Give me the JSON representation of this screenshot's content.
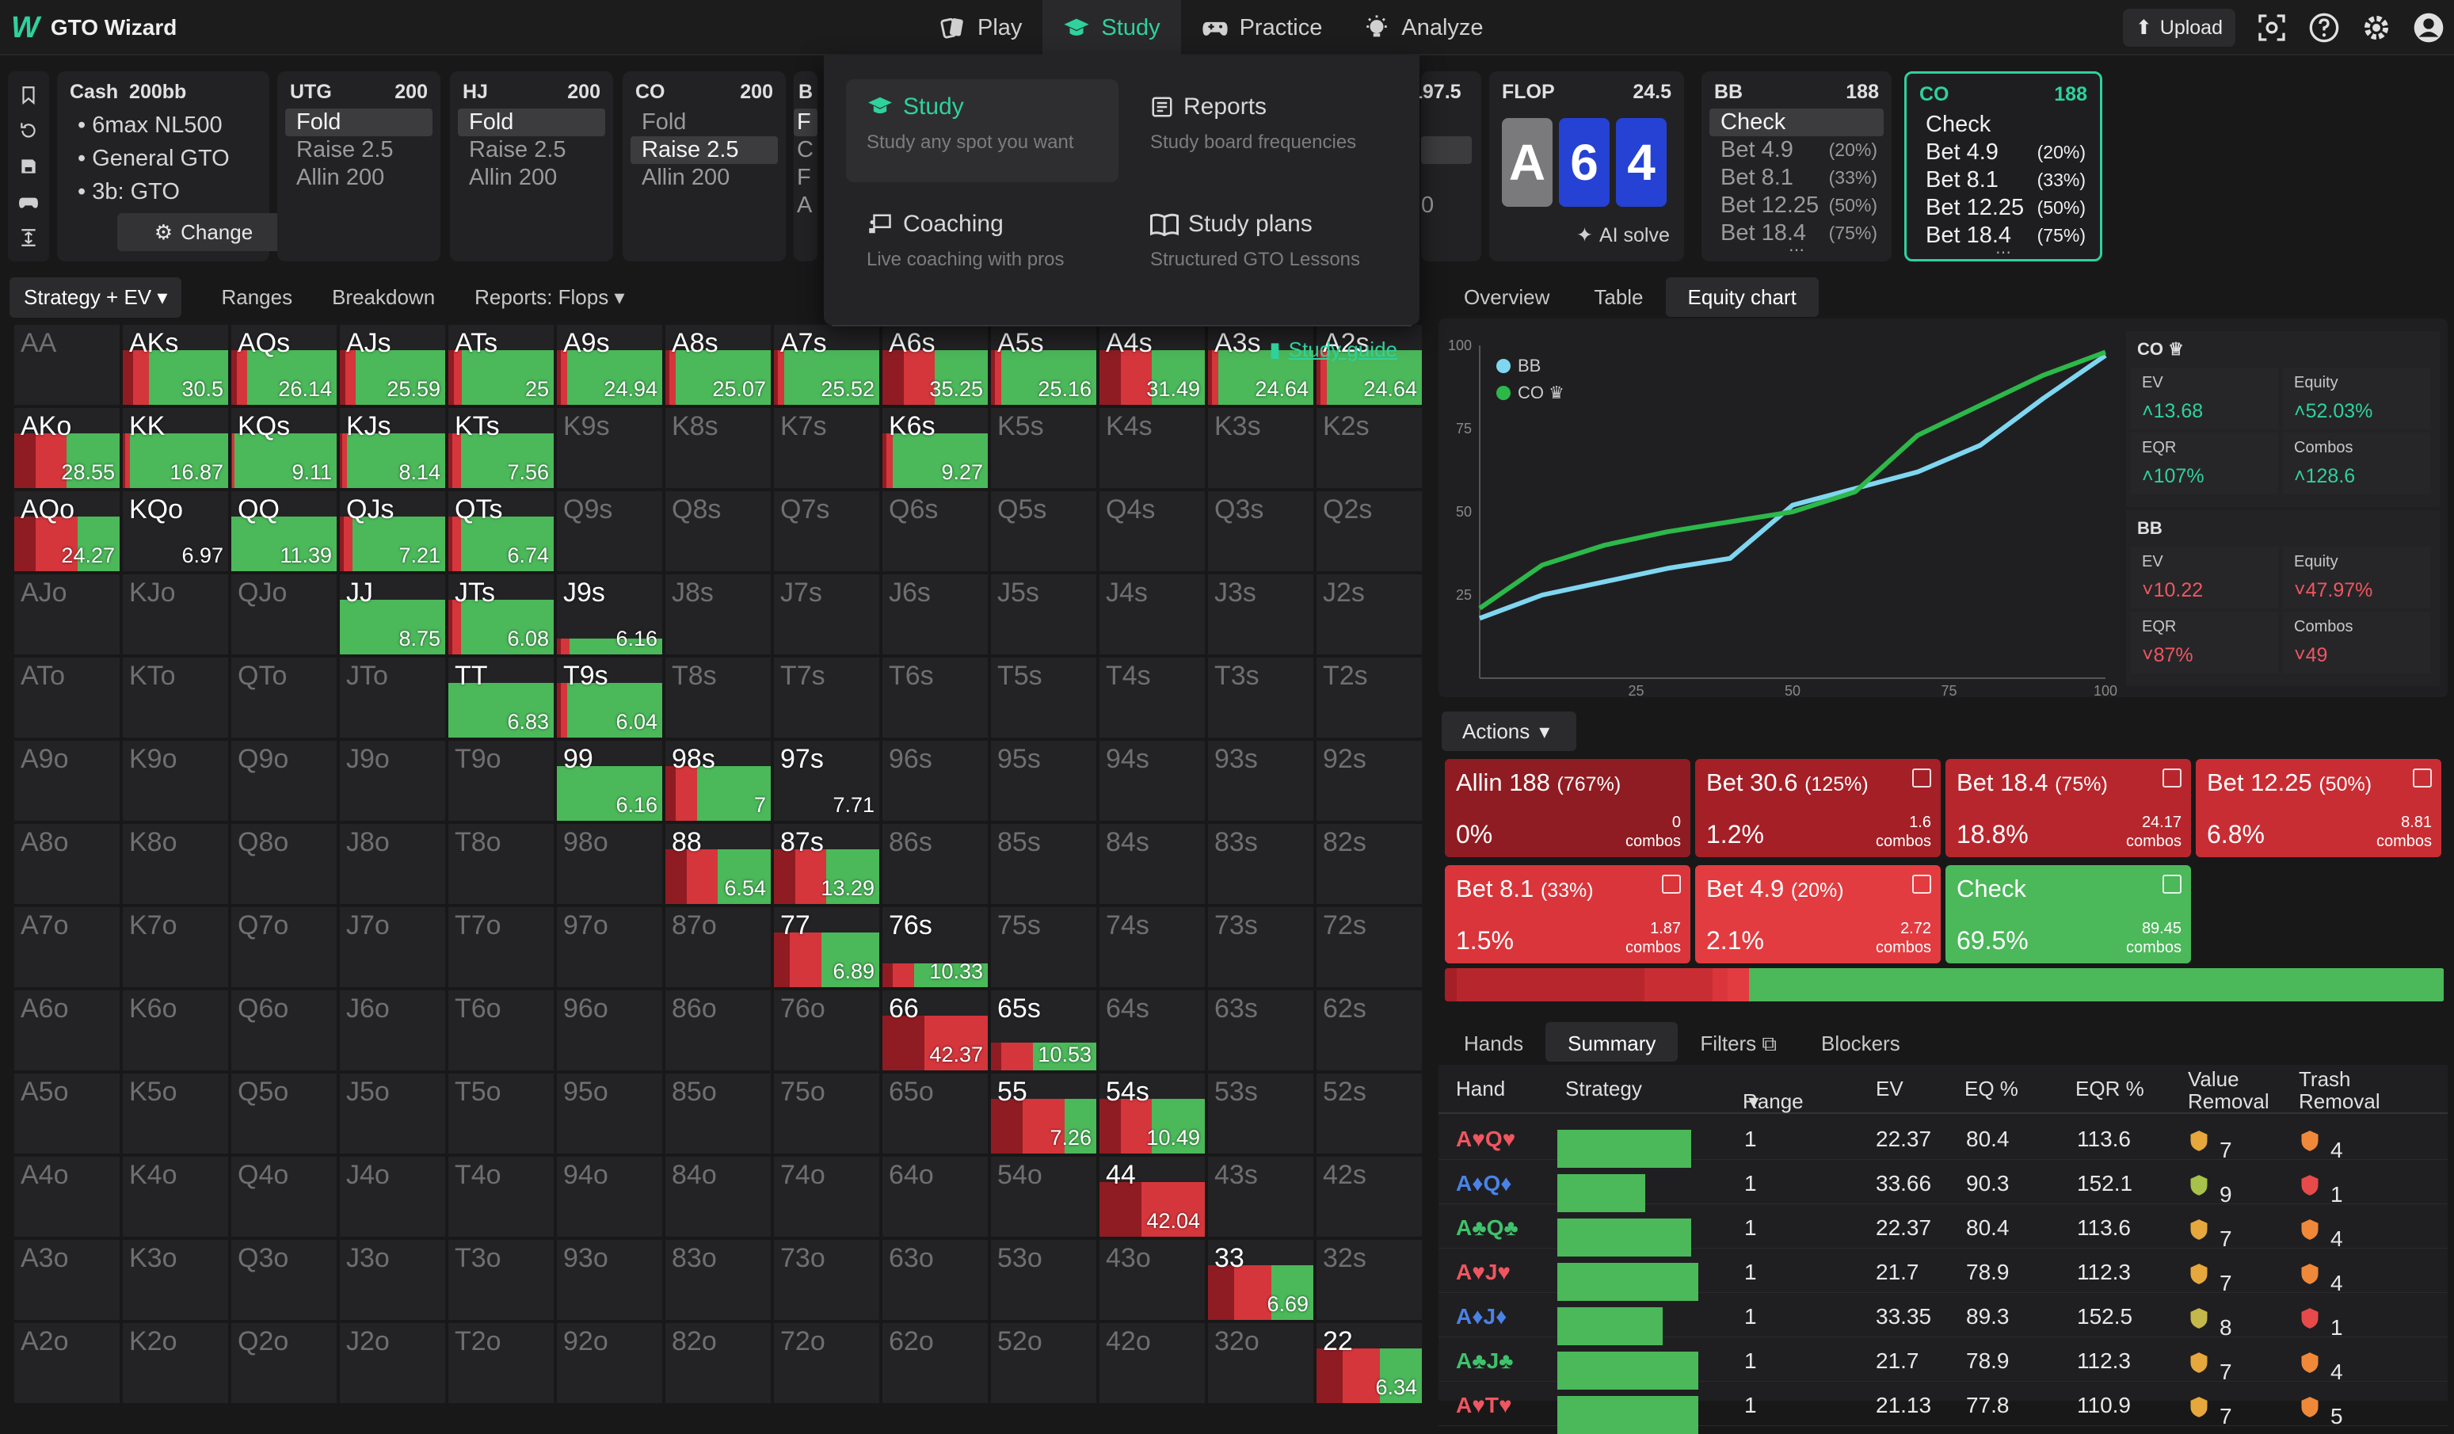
{
  "app": {
    "title": "GTO Wizard"
  },
  "nav": {
    "tabs": [
      {
        "label": "Play"
      },
      {
        "label": "Study"
      },
      {
        "label": "Practice"
      },
      {
        "label": "Analyze"
      }
    ]
  },
  "topright": {
    "upload": "Upload"
  },
  "spot": {
    "game": "Cash",
    "stack": "200bb",
    "details": [
      "• 6max NL500",
      "• General GTO",
      "• 3b: GTO"
    ],
    "change": "Change"
  },
  "positions": [
    {
      "pos": "UTG",
      "stack": "200",
      "options": [
        "Fold",
        "Raise 2.5",
        "Allin 200"
      ],
      "selected": 0
    },
    {
      "pos": "HJ",
      "stack": "200",
      "options": [
        "Fold",
        "Raise 2.5",
        "Allin 200"
      ],
      "selected": 0
    },
    {
      "pos": "CO",
      "stack": "200",
      "options": [
        "Fold",
        "Raise 2.5",
        "Allin 200"
      ],
      "selected": 1
    }
  ],
  "partial": {
    "pos": "B",
    "chars": [
      "F",
      "C",
      "F",
      "A"
    ],
    "stack": "197.5",
    "vals": [
      "0"
    ]
  },
  "flop": {
    "label": "FLOP",
    "pot": "24.5",
    "cards": [
      "A",
      "6",
      "4"
    ],
    "ai": "AI solve"
  },
  "bb": {
    "pos": "BB",
    "stack": "188",
    "options": [
      {
        "l": "Check",
        "p": ""
      },
      {
        "l": "Bet 4.9",
        "p": "(20%)"
      },
      {
        "l": "Bet 8.1",
        "p": "(33%)"
      },
      {
        "l": "Bet 12.25",
        "p": "(50%)"
      },
      {
        "l": "Bet 18.4",
        "p": "(75%)"
      }
    ]
  },
  "co": {
    "pos": "CO",
    "stack": "188",
    "options": [
      {
        "l": "Check",
        "p": ""
      },
      {
        "l": "Bet 4.9",
        "p": "(20%)"
      },
      {
        "l": "Bet 8.1",
        "p": "(33%)"
      },
      {
        "l": "Bet 12.25",
        "p": "(50%)"
      },
      {
        "l": "Bet 18.4",
        "p": "(75%)"
      }
    ]
  },
  "dropdown": {
    "items": [
      {
        "title": "Study",
        "sub": "Study any spot you want"
      },
      {
        "title": "Reports",
        "sub": "Study board frequencies"
      },
      {
        "title": "Coaching",
        "sub": "Live coaching with pros"
      },
      {
        "title": "Study plans",
        "sub": "Structured GTO Lessons"
      }
    ],
    "guide": "Study guide"
  },
  "gridtabs": [
    "Strategy + EV",
    "Ranges",
    "Breakdown",
    "Reports: Flops"
  ],
  "grid": {
    "ranks": [
      "A",
      "K",
      "Q",
      "J",
      "T",
      "9",
      "8",
      "7",
      "6",
      "5",
      "4",
      "3",
      "2"
    ],
    "cells": {
      "AKs": [
        "30.5",
        0.1,
        0.15,
        0.75
      ],
      "AQs": [
        "26.14",
        0.05,
        0.1,
        0.85
      ],
      "AJs": [
        "25.59",
        0.05,
        0.1,
        0.85
      ],
      "ATs": [
        "25",
        0.05,
        0.08,
        0.87
      ],
      "A9s": [
        "24.94",
        0.04,
        0.06,
        0.9
      ],
      "A8s": [
        "25.07",
        0.04,
        0.06,
        0.9
      ],
      "A7s": [
        "25.52",
        0.04,
        0.06,
        0.9
      ],
      "A6s": [
        "35.25",
        0.2,
        0.3,
        0.5
      ],
      "A5s": [
        "25.16",
        0.04,
        0.06,
        0.9
      ],
      "A4s": [
        "31.49",
        0.2,
        0.3,
        0.5
      ],
      "A3s": [
        "24.64",
        0.04,
        0.06,
        0.9
      ],
      "A2s": [
        "24.64",
        0.04,
        0.06,
        0.9
      ],
      "AKo": [
        "28.55",
        0.2,
        0.3,
        0.5
      ],
      "KK": [
        "16.87",
        0.02,
        0.05,
        0.93
      ],
      "KQs": [
        "9.11",
        0.01,
        0.02,
        0.97
      ],
      "KJs": [
        "8.14",
        0.02,
        0.05,
        0.93
      ],
      "KTs": [
        "7.56",
        0.04,
        0.08,
        0.88
      ],
      "K6s": [
        "9.27",
        0.04,
        0.06,
        0.9
      ],
      "AQo": [
        "24.27",
        0.2,
        0.4,
        0.4
      ],
      "KQo": [
        "6.97",
        0,
        0,
        0
      ],
      "QQ": [
        "11.39",
        0,
        0,
        1
      ],
      "QJs": [
        "7.21",
        0.04,
        0.08,
        0.88
      ],
      "QTs": [
        "6.74",
        0.04,
        0.08,
        0.88
      ],
      "JJ": [
        "8.75",
        0,
        0,
        1
      ],
      "JTs": [
        "6.08",
        0.04,
        0.08,
        0.88
      ],
      "J9s": [
        "6.16",
        0.04,
        0.08,
        0.88,
        0.2
      ],
      "TT": [
        "6.83",
        0,
        0,
        1
      ],
      "T9s": [
        "6.04",
        0.04,
        0.06,
        0.9
      ],
      "99": [
        "6.16",
        0,
        0,
        1
      ],
      "98s": [
        "7",
        0.1,
        0.2,
        0.7
      ],
      "97s": [
        "7.71",
        0,
        0,
        0
      ],
      "88": [
        "6.54",
        0.2,
        0.3,
        0.5
      ],
      "87s": [
        "13.29",
        0.2,
        0.3,
        0.5
      ],
      "77": [
        "6.89",
        0.15,
        0.3,
        0.55
      ],
      "76s": [
        "10.33",
        0.1,
        0.2,
        0.7,
        0.3
      ],
      "66": [
        "42.37",
        0.4,
        0.6,
        0
      ],
      "65s": [
        "10.53",
        0.1,
        0.3,
        0.6,
        0.35
      ],
      "55": [
        "7.26",
        0.3,
        0.4,
        0.3
      ],
      "54s": [
        "10.49",
        0.2,
        0.3,
        0.5
      ],
      "44": [
        "42.04",
        0.4,
        0.6,
        0
      ],
      "33": [
        "6.69",
        0.25,
        0.35,
        0.4
      ],
      "22": [
        "6.34",
        0.25,
        0.35,
        0.4
      ]
    }
  },
  "righttabs": [
    "Overview",
    "Table",
    "Equity chart"
  ],
  "chart_data": {
    "type": "line",
    "x": [
      0,
      10,
      20,
      30,
      40,
      50,
      60,
      70,
      80,
      90,
      100
    ],
    "yticks": [
      "100",
      "75",
      "50",
      "25"
    ],
    "xticks": [
      "25",
      "50",
      "75",
      "100"
    ],
    "series": [
      {
        "name": "BB",
        "color": "#7fd6f0",
        "values": [
          18,
          25,
          29,
          33,
          36,
          52,
          57,
          62,
          70,
          84,
          97
        ]
      },
      {
        "name": "CO",
        "color": "#2db84a",
        "values": [
          21,
          34,
          40,
          44,
          47,
          50,
          56,
          73,
          82,
          91,
          98
        ]
      }
    ]
  },
  "costats": {
    "title": "CO",
    "ev": "13.68",
    "equity": "52.03%",
    "eqr": "107%",
    "combos": "128.6"
  },
  "bbstats": {
    "title": "BB",
    "ev": "10.22",
    "equity": "47.97%",
    "eqr": "87%",
    "combos": "49"
  },
  "statlabels": {
    "ev": "EV",
    "equity": "Equity",
    "eqr": "EQR",
    "combos": "Combos"
  },
  "actions": {
    "label": "Actions",
    "items": [
      {
        "l": "Allin 188",
        "s": "(767%)",
        "p": "0%",
        "c": "0",
        "color": "#8f1c22"
      },
      {
        "l": "Bet 30.6",
        "s": "(125%)",
        "p": "1.2%",
        "c": "1.6",
        "color": "#a51f26"
      },
      {
        "l": "Bet 18.4",
        "s": "(75%)",
        "p": "18.8%",
        "c": "24.17",
        "color": "#b8262d"
      },
      {
        "l": "Bet 12.25",
        "s": "(50%)",
        "p": "6.8%",
        "c": "8.81",
        "color": "#c92d34"
      },
      {
        "l": "Bet 8.1",
        "s": "(33%)",
        "p": "1.5%",
        "c": "1.87",
        "color": "#d9353b"
      },
      {
        "l": "Bet 4.9",
        "s": "(20%)",
        "p": "2.1%",
        "c": "2.72",
        "color": "#e23c40"
      },
      {
        "l": "Check",
        "s": "",
        "p": "69.5%",
        "c": "89.45",
        "color": "#4bb85a"
      }
    ],
    "combos_word": "combos"
  },
  "bottomtabs": [
    "Hands",
    "Summary",
    "Filters",
    "Blockers"
  ],
  "table": {
    "headers": [
      "Hand",
      "Strategy",
      "Range",
      "EV",
      "EQ %",
      "EQR %",
      "Value Removal",
      "Trash Removal"
    ],
    "rows": [
      {
        "h": "A♥Q♥",
        "c": "#ef5660",
        "r": "1",
        "ev": "22.37",
        "eq": "80.4",
        "eqr": "113.6",
        "v": "7",
        "t": "4",
        "s": [
          0.06,
          0.18,
          0.76
        ],
        "vc": "#e6a83c",
        "tc": "#f0883a"
      },
      {
        "h": "A♦Q♦",
        "c": "#4a82e8",
        "r": "1",
        "ev": "33.66",
        "eq": "90.3",
        "eqr": "152.1",
        "v": "9",
        "t": "1",
        "s": [
          0.1,
          0.4,
          0.5
        ],
        "vc": "#a6c24a",
        "tc": "#e64a4a"
      },
      {
        "h": "A♣Q♣",
        "c": "#3fc26b",
        "r": "1",
        "ev": "22.37",
        "eq": "80.4",
        "eqr": "113.6",
        "v": "7",
        "t": "4",
        "s": [
          0.06,
          0.18,
          0.76
        ],
        "vc": "#e6a83c",
        "tc": "#f0883a"
      },
      {
        "h": "A♥J♥",
        "c": "#ef5660",
        "r": "1",
        "ev": "21.7",
        "eq": "78.9",
        "eqr": "112.3",
        "v": "7",
        "t": "4",
        "s": [
          0.06,
          0.14,
          0.8
        ],
        "vc": "#e6a83c",
        "tc": "#f0883a"
      },
      {
        "h": "A♦J♦",
        "c": "#4a82e8",
        "r": "1",
        "ev": "33.35",
        "eq": "89.3",
        "eqr": "152.5",
        "v": "8",
        "t": "1",
        "s": [
          0.1,
          0.3,
          0.6
        ],
        "vc": "#c5b84a",
        "tc": "#e64a4a"
      },
      {
        "h": "A♣J♣",
        "c": "#3fc26b",
        "r": "1",
        "ev": "21.7",
        "eq": "78.9",
        "eqr": "112.3",
        "v": "7",
        "t": "4",
        "s": [
          0.06,
          0.14,
          0.8
        ],
        "vc": "#e6a83c",
        "tc": "#f0883a"
      },
      {
        "h": "A♥T♥",
        "c": "#ef5660",
        "r": "1",
        "ev": "21.13",
        "eq": "77.8",
        "eqr": "110.9",
        "v": "7",
        "t": "5",
        "s": [
          0.06,
          0.14,
          0.8
        ],
        "vc": "#e6a83c",
        "tc": "#f0883a"
      }
    ]
  }
}
